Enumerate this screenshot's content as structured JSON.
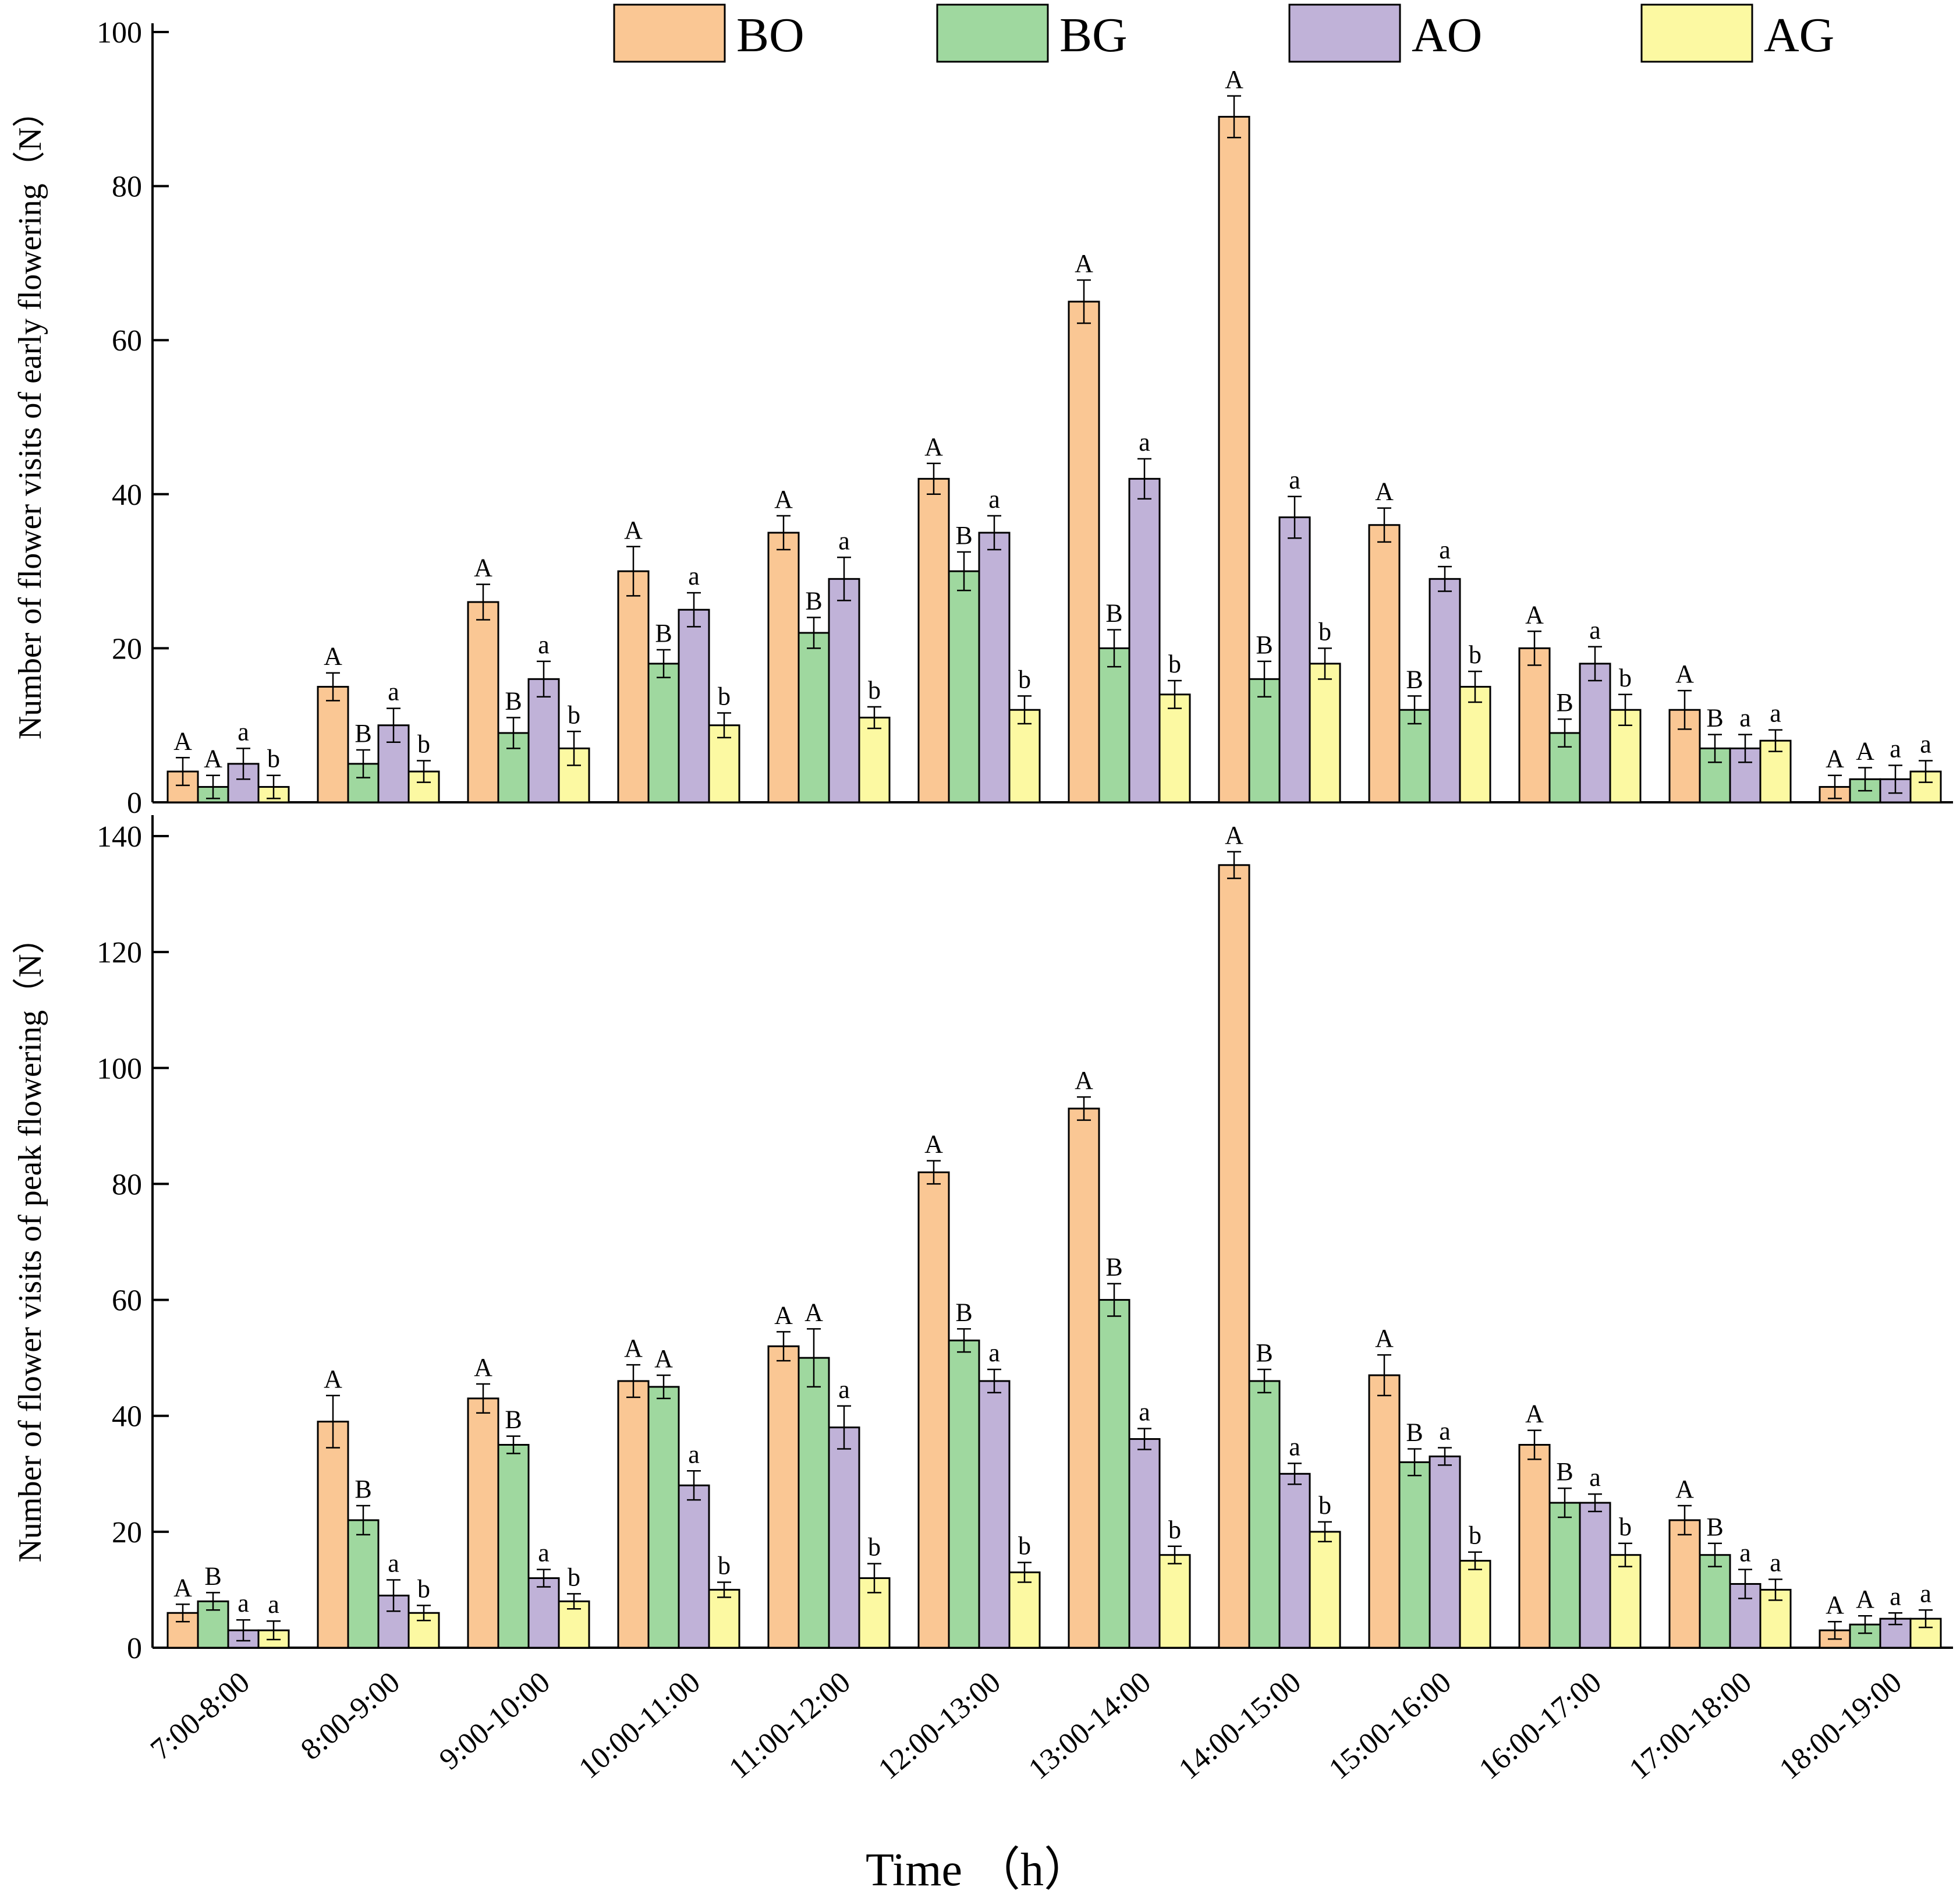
{
  "chart_data": {
    "type": "bar",
    "xlabel": "Time （h）",
    "categories": [
      "7:00-8:00",
      "8:00-9:00",
      "9:00-10:00",
      "10:00-11:00",
      "11:00-12:00",
      "12:00-13:00",
      "13:00-14:00",
      "14:00-15:00",
      "15:00-16:00",
      "16:00-17:00",
      "17:00-18:00",
      "18:00-19:00"
    ],
    "legend": [
      {
        "name": "BO",
        "color": "#FAC794"
      },
      {
        "name": "BG",
        "color": "#9FD89F"
      },
      {
        "name": "AO",
        "color": "#C0B2D8"
      },
      {
        "name": "AG",
        "color": "#FCF9A2"
      }
    ],
    "panels": [
      {
        "ylabel": "Number of flower visits of early flowering（N）",
        "ylim": [
          0,
          100
        ],
        "yticks": [
          0,
          20,
          40,
          60,
          80,
          100
        ],
        "series": [
          {
            "name": "BO",
            "values": [
              4,
              15,
              26,
              30,
              35,
              42,
              65,
              89,
              36,
              20,
              12,
              2
            ],
            "errors": [
              1.8,
              1.8,
              2.3,
              3.2,
              2.2,
              2.0,
              2.8,
              2.7,
              2.2,
              2.2,
              2.5,
              1.5
            ],
            "labels": [
              "A",
              "A",
              "A",
              "A",
              "A",
              "A",
              "A",
              "A",
              "A",
              "A",
              "A",
              "A"
            ]
          },
          {
            "name": "BG",
            "values": [
              2,
              5,
              9,
              18,
              22,
              30,
              20,
              16,
              12,
              9,
              7,
              3
            ],
            "errors": [
              1.5,
              1.8,
              2.0,
              1.8,
              2.0,
              2.5,
              2.4,
              2.3,
              1.8,
              1.8,
              1.8,
              1.5
            ],
            "labels": [
              "A",
              "B",
              "B",
              "B",
              "B",
              "B",
              "B",
              "B",
              "B",
              "B",
              "B",
              "A"
            ]
          },
          {
            "name": "AO",
            "values": [
              5,
              10,
              16,
              25,
              29,
              35,
              42,
              37,
              29,
              18,
              7,
              3
            ],
            "errors": [
              2.0,
              2.2,
              2.3,
              2.2,
              2.8,
              2.2,
              2.6,
              2.7,
              1.6,
              2.2,
              1.8,
              1.8
            ],
            "labels": [
              "a",
              "a",
              "a",
              "a",
              "a",
              "a",
              "a",
              "a",
              "a",
              "a",
              "a",
              "a"
            ]
          },
          {
            "name": "AG",
            "values": [
              2,
              4,
              7,
              10,
              11,
              12,
              14,
              18,
              15,
              12,
              8,
              4
            ],
            "errors": [
              1.5,
              1.4,
              2.2,
              1.6,
              1.4,
              1.8,
              1.8,
              2.0,
              2.0,
              2.0,
              1.4,
              1.4
            ],
            "labels": [
              "b",
              "b",
              "b",
              "b",
              "b",
              "b",
              "b",
              "b",
              "b",
              "b",
              "a",
              "a"
            ]
          }
        ]
      },
      {
        "ylabel": "Number of flower visits of peak flowering（N）",
        "ylim": [
          0,
          140
        ],
        "yticks": [
          0,
          20,
          40,
          60,
          80,
          100,
          120,
          140
        ],
        "series": [
          {
            "name": "BO",
            "values": [
              6,
              39,
              43,
              46,
              52,
              82,
              93,
              135,
              47,
              35,
              22,
              3
            ],
            "errors": [
              1.5,
              4.5,
              2.5,
              2.8,
              2.5,
              2.0,
              2.0,
              2.3,
              3.5,
              2.5,
              2.5,
              1.5
            ],
            "labels": [
              "A",
              "A",
              "A",
              "A",
              "A",
              "A",
              "A",
              "A",
              "A",
              "A",
              "A",
              "A"
            ]
          },
          {
            "name": "BG",
            "values": [
              8,
              22,
              35,
              45,
              50,
              53,
              60,
              46,
              32,
              25,
              16,
              4
            ],
            "errors": [
              1.5,
              2.5,
              1.5,
              2.0,
              5.0,
              2.0,
              2.8,
              2.0,
              2.3,
              2.5,
              2.0,
              1.5
            ],
            "labels": [
              "B",
              "B",
              "B",
              "A",
              "A",
              "B",
              "B",
              "B",
              "B",
              "B",
              "B",
              "A"
            ]
          },
          {
            "name": "AO",
            "values": [
              3,
              9,
              12,
              28,
              38,
              46,
              36,
              30,
              33,
              25,
              11,
              5
            ],
            "errors": [
              1.8,
              2.7,
              1.5,
              2.5,
              3.7,
              2.0,
              1.8,
              1.8,
              1.5,
              1.5,
              2.5,
              1.0
            ],
            "labels": [
              "a",
              "a",
              "a",
              "a",
              "a",
              "a",
              "a",
              "a",
              "a",
              "a",
              "a",
              "a"
            ]
          },
          {
            "name": "AG",
            "values": [
              3,
              6,
              8,
              10,
              12,
              13,
              16,
              20,
              15,
              16,
              10,
              5
            ],
            "errors": [
              1.6,
              1.3,
              1.3,
              1.3,
              2.5,
              1.7,
              1.5,
              1.7,
              1.5,
              2.0,
              1.8,
              1.5
            ],
            "labels": [
              "a",
              "b",
              "b",
              "b",
              "b",
              "b",
              "b",
              "b",
              "b",
              "b",
              "a",
              "a"
            ]
          }
        ]
      }
    ]
  }
}
